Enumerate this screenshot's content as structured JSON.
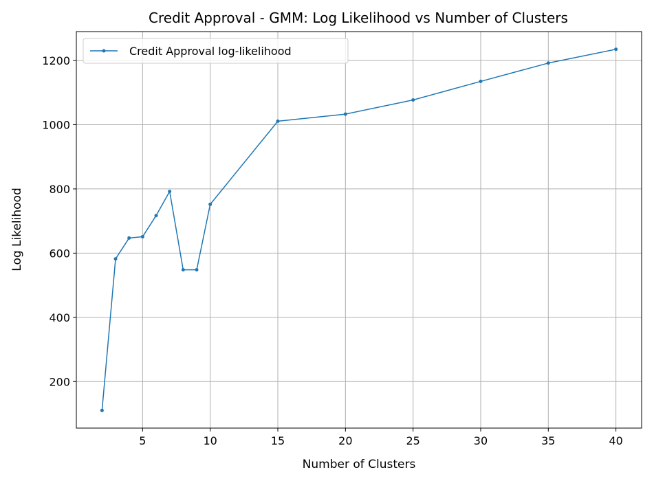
{
  "chart_data": {
    "type": "line",
    "title": "Credit Approval - GMM: Log Likelihood vs Number of Clusters",
    "xlabel": "Number of Clusters",
    "ylabel": "Log Likelihood",
    "xlim": [
      0.1,
      41.9
    ],
    "ylim": [
      55,
      1290
    ],
    "xticks": [
      5,
      10,
      15,
      20,
      25,
      30,
      35,
      40
    ],
    "yticks": [
      200,
      400,
      600,
      800,
      1000,
      1200
    ],
    "grid": true,
    "legend_position": "top-left",
    "series": [
      {
        "name": "Credit Approval log-likelihood",
        "color": "#1f77b4",
        "x": [
          2,
          3,
          4,
          5,
          6,
          7,
          8,
          9,
          10,
          15,
          20,
          25,
          30,
          35,
          40
        ],
        "y": [
          110,
          582,
          647,
          651,
          717,
          792,
          548,
          548,
          752,
          1011,
          1033,
          1077,
          1135,
          1192,
          1235
        ]
      }
    ]
  }
}
